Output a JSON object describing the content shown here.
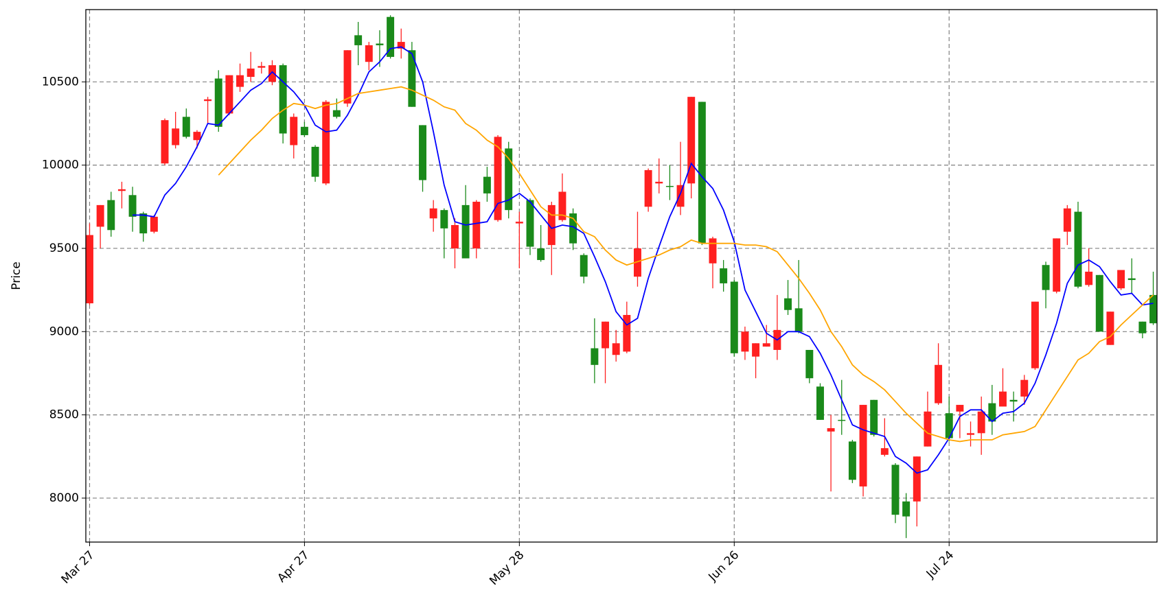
{
  "chart_data": {
    "type": "candlestick",
    "ylabel": "Price",
    "categories": [
      "Mar 27",
      null,
      null,
      null,
      null,
      null,
      null,
      null,
      null,
      null,
      null,
      null,
      null,
      null,
      null,
      null,
      null,
      null,
      null,
      null,
      "Apr 27",
      null,
      null,
      null,
      null,
      null,
      null,
      null,
      null,
      null,
      null,
      null,
      null,
      null,
      null,
      null,
      null,
      null,
      null,
      null,
      "May 28",
      null,
      null,
      null,
      null,
      null,
      null,
      null,
      null,
      null,
      null,
      null,
      null,
      null,
      null,
      null,
      null,
      null,
      null,
      null,
      "Jun 26",
      null,
      null,
      null,
      null,
      null,
      null,
      null,
      null,
      null,
      null,
      null,
      null,
      null,
      null,
      null,
      null,
      null,
      null,
      null,
      "Jul 24",
      null,
      null,
      null,
      null,
      null,
      null,
      null,
      null,
      null,
      null,
      null,
      null,
      null,
      null,
      null,
      null,
      null,
      null,
      null
    ],
    "open": [
      9170,
      9630,
      9790,
      9845,
      9820,
      9710,
      9600,
      10010,
      10120,
      10290,
      10150,
      10385,
      10520,
      10310,
      10470,
      10530,
      10585,
      10500,
      10600,
      10120,
      10230,
      10110,
      9890,
      10330,
      10370,
      10780,
      10620,
      10730,
      10890,
      10700,
      10690,
      10240,
      9680,
      9730,
      9500,
      9760,
      9500,
      9930,
      9670,
      10100,
      9650,
      9790,
      9500,
      9520,
      9670,
      9710,
      9460,
      8900,
      8900,
      8860,
      8880,
      9330,
      9750,
      9890,
      9875,
      9750,
      9890,
      10380,
      9410,
      9380,
      9300,
      8880,
      8850,
      8910,
      8890,
      9200,
      9140,
      8890,
      8670,
      8400,
      8470,
      8340,
      8070,
      8590,
      8260,
      8200,
      7980,
      7980,
      8310,
      8570,
      8510,
      8520,
      8380,
      8390,
      8570,
      8550,
      8590,
      8610,
      8780,
      9400,
      9240,
      9600,
      9720,
      9280,
      9340,
      8920,
      9260,
      9320,
      9060,
      9220
    ],
    "high": [
      9650,
      9760,
      9840,
      9900,
      9870,
      9720,
      9700,
      10280,
      10320,
      10340,
      10210,
      10410,
      10570,
      10540,
      10610,
      10680,
      10620,
      10630,
      10610,
      10310,
      10260,
      10120,
      10390,
      10400,
      10690,
      10860,
      10740,
      10810,
      10900,
      10820,
      10740,
      10240,
      9790,
      9740,
      9680,
      9880,
      9790,
      9990,
      10180,
      10140,
      9720,
      9800,
      9640,
      9780,
      9950,
      9740,
      9470,
      9080,
      9060,
      9010,
      9180,
      9720,
      9980,
      10040,
      10000,
      10140,
      10410,
      10380,
      9570,
      9430,
      9310,
      9030,
      8930,
      9040,
      9220,
      9310,
      9430,
      8890,
      8690,
      8500,
      8710,
      8350,
      8560,
      8590,
      8480,
      8210,
      8030,
      8250,
      8640,
      8930,
      8610,
      8560,
      8460,
      8610,
      8680,
      8780,
      8640,
      8740,
      9180,
      9420,
      9560,
      9760,
      9780,
      9500,
      9340,
      9120,
      9370,
      9440,
      9060,
      9360
    ],
    "low": [
      9160,
      9500,
      9570,
      9740,
      9600,
      9540,
      9590,
      10000,
      10100,
      10160,
      10100,
      10250,
      10200,
      10300,
      10440,
      10500,
      10550,
      10480,
      10130,
      10040,
      10170,
      9900,
      9880,
      10280,
      10350,
      10600,
      10570,
      10590,
      10640,
      10640,
      10350,
      9840,
      9600,
      9440,
      9380,
      9440,
      9440,
      9780,
      9660,
      9680,
      9380,
      9460,
      9420,
      9340,
      9660,
      9490,
      9290,
      8690,
      8690,
      8820,
      8870,
      9270,
      9720,
      9830,
      9790,
      9700,
      9800,
      9520,
      9260,
      9240,
      8850,
      8830,
      8720,
      8910,
      8830,
      9100,
      8990,
      8690,
      8470,
      8040,
      8380,
      8090,
      8010,
      8370,
      8250,
      7850,
      7760,
      7830,
      8310,
      8560,
      8340,
      8360,
      8310,
      8260,
      8380,
      8550,
      8460,
      8560,
      8770,
      9140,
      9230,
      9520,
      9260,
      9270,
      9000,
      8920,
      9250,
      9230,
      8960,
      9040
    ],
    "close": [
      9580,
      9760,
      9610,
      9855,
      9690,
      9590,
      9690,
      10270,
      10220,
      10170,
      10200,
      10395,
      10230,
      10540,
      10540,
      10580,
      10595,
      10600,
      10190,
      10290,
      10180,
      9930,
      10380,
      10290,
      10690,
      10720,
      10720,
      10720,
      10650,
      10740,
      10350,
      9910,
      9740,
      9620,
      9640,
      9440,
      9780,
      9830,
      10170,
      9730,
      9660,
      9510,
      9430,
      9760,
      9840,
      9530,
      9330,
      8800,
      9060,
      8930,
      9100,
      9500,
      9970,
      9900,
      9870,
      9880,
      10410,
      9530,
      9560,
      9290,
      8870,
      9000,
      8930,
      8930,
      9010,
      9130,
      9000,
      8720,
      8470,
      8420,
      8465,
      8110,
      8560,
      8380,
      8300,
      7900,
      7890,
      8250,
      8520,
      8800,
      8360,
      8560,
      8390,
      8520,
      8460,
      8640,
      8580,
      8710,
      9180,
      9250,
      9560,
      9740,
      9270,
      9360,
      9000,
      9120,
      9370,
      9310,
      8990,
      9050
    ],
    "up_color": "#ff2020",
    "down_color": "#1a8a1a",
    "lines": [
      {
        "color": "#0000ff",
        "values": [
          null,
          null,
          null,
          null,
          9700,
          9700,
          9690,
          9820,
          9890,
          9990,
          10110,
          10250,
          10240,
          10310,
          10380,
          10450,
          10490,
          10560,
          10500,
          10440,
          10360,
          10240,
          10200,
          10210,
          10300,
          10420,
          10560,
          10620,
          10700,
          10710,
          10670,
          10500,
          10200,
          9880,
          9660,
          9640,
          9650,
          9660,
          9770,
          9790,
          9830,
          9780,
          9700,
          9620,
          9640,
          9630,
          9590,
          9450,
          9300,
          9120,
          9040,
          9080,
          9320,
          9510,
          9690,
          9830,
          10010,
          9930,
          9860,
          9730,
          9540,
          9250,
          9120,
          8990,
          8950,
          9000,
          9000,
          8970,
          8870,
          8740,
          8590,
          8440,
          8410,
          8390,
          8370,
          8250,
          8210,
          8150,
          8170,
          8260,
          8360,
          8490,
          8530,
          8530,
          8460,
          8510,
          8520,
          8570,
          8690,
          8860,
          9050,
          9290,
          9400,
          9430,
          9390,
          9300,
          9220,
          9230,
          9160,
          9170
        ]
      },
      {
        "color": "#ffa500",
        "values": [
          null,
          null,
          null,
          null,
          null,
          null,
          null,
          null,
          null,
          null,
          null,
          null,
          9940,
          10010,
          10080,
          10150,
          10210,
          10280,
          10330,
          10370,
          10360,
          10340,
          10360,
          10370,
          10400,
          10430,
          10440,
          10450,
          10460,
          10470,
          10450,
          10420,
          10390,
          10350,
          10330,
          10250,
          10210,
          10150,
          10110,
          10040,
          9950,
          9850,
          9750,
          9700,
          9700,
          9680,
          9600,
          9570,
          9490,
          9430,
          9400,
          9420,
          9440,
          9460,
          9490,
          9510,
          9550,
          9530,
          9530,
          9530,
          9530,
          9520,
          9520,
          9510,
          9480,
          9400,
          9320,
          9230,
          9130,
          9000,
          8910,
          8800,
          8740,
          8700,
          8650,
          8580,
          8510,
          8450,
          8390,
          8370,
          8350,
          8340,
          8350,
          8350,
          8350,
          8380,
          8390,
          8400,
          8430,
          8530,
          8630,
          8730,
          8830,
          8870,
          8940,
          8970,
          9040,
          9100,
          9160,
          9220
        ]
      }
    ],
    "ylim": [
      7736,
      10934
    ],
    "yticks": [
      8000,
      8500,
      9000,
      9500,
      10000,
      10500
    ],
    "grid": true
  }
}
